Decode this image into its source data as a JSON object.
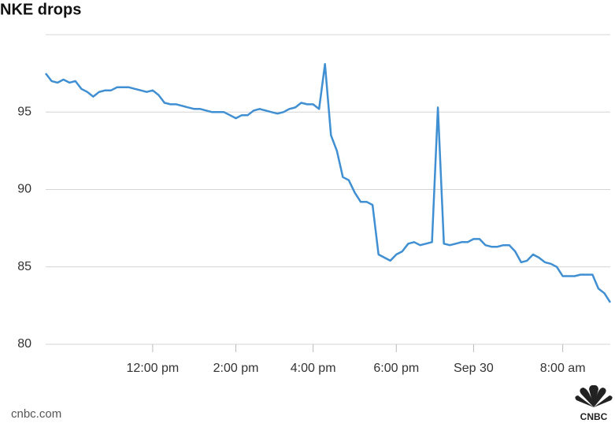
{
  "chart_data": {
    "type": "line",
    "title": "NKE drops",
    "categories": [
      null,
      null,
      null,
      null,
      null,
      null,
      null,
      null,
      null,
      null,
      null,
      null,
      null,
      null,
      null,
      null,
      null,
      null,
      "12:00 pm",
      null,
      null,
      null,
      null,
      null,
      null,
      null,
      null,
      null,
      null,
      null,
      null,
      null,
      "2:00 pm",
      null,
      null,
      null,
      null,
      null,
      null,
      null,
      null,
      null,
      null,
      null,
      null,
      "4:00 pm",
      null,
      null,
      null,
      null,
      null,
      null,
      null,
      null,
      null,
      null,
      null,
      null,
      null,
      "6:00 pm",
      null,
      null,
      null,
      null,
      null,
      null,
      null,
      null,
      null,
      null,
      null,
      null,
      "Sep 30",
      null,
      null,
      null,
      null,
      null,
      null,
      null,
      null,
      null,
      null,
      null,
      null,
      null,
      null,
      "8:00 am",
      null,
      null,
      null,
      null,
      null,
      null,
      null,
      null
    ],
    "values": [
      97.5,
      97.0,
      96.9,
      97.1,
      96.9,
      97.0,
      96.5,
      96.3,
      96.0,
      96.3,
      96.4,
      96.4,
      96.6,
      96.6,
      96.6,
      96.5,
      96.4,
      96.3,
      96.4,
      96.1,
      95.6,
      95.5,
      95.5,
      95.4,
      95.3,
      95.2,
      95.2,
      95.1,
      95.0,
      95.0,
      95.0,
      94.8,
      94.6,
      94.8,
      94.8,
      95.1,
      95.2,
      95.1,
      95.0,
      94.9,
      95.0,
      95.2,
      95.3,
      95.6,
      95.5,
      95.5,
      95.2,
      98.1,
      93.5,
      92.5,
      90.8,
      90.6,
      89.8,
      89.2,
      89.2,
      89.0,
      85.8,
      85.6,
      85.4,
      85.8,
      86.0,
      86.5,
      86.6,
      86.4,
      86.5,
      86.6,
      95.3,
      86.5,
      86.4,
      86.5,
      86.6,
      86.6,
      86.8,
      86.8,
      86.4,
      86.3,
      86.3,
      86.4,
      86.4,
      86.0,
      85.3,
      85.4,
      85.8,
      85.6,
      85.3,
      85.2,
      85.0,
      84.4,
      84.4,
      84.4,
      84.5,
      84.5,
      84.5,
      83.6,
      83.3,
      82.7
    ],
    "color": "#3f8fd2",
    "ylim": [
      80,
      100
    ],
    "yticks": [
      80,
      85,
      90,
      95
    ],
    "grid": true,
    "source": "cnbc.com",
    "logo": "CNBC"
  }
}
